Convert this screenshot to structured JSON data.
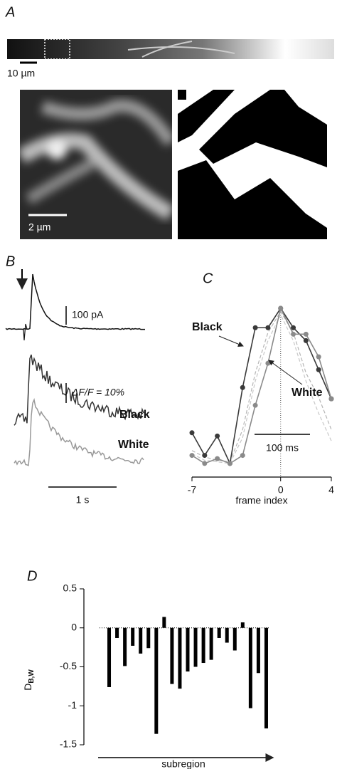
{
  "panels": {
    "a": {
      "label": "A",
      "scale_strip": "10 µm",
      "scale_zoom": "2 µm"
    },
    "b": {
      "label": "B",
      "current_scale": "100 pA",
      "dff_scale": "ΔF/F = 10%",
      "black": "Black",
      "white": "White",
      "time_scale": "1 s"
    }
  },
  "chart_data": [
    {
      "type": "line",
      "title": "C",
      "xlabel": "frame index",
      "x": [
        -7,
        -6,
        -5,
        -4,
        -3,
        -2,
        -1,
        0,
        1,
        2,
        3,
        4
      ],
      "xlim": [
        -7,
        4
      ],
      "xticks": [
        -7,
        0,
        4
      ],
      "ylim": [
        0,
        1
      ],
      "annotations": [
        "Black",
        "White"
      ],
      "scale_label": "100 ms",
      "series": [
        {
          "style": "dashed",
          "color": "#b5b5b5",
          "values": [
            0.12,
            0.08,
            0.06,
            0.05,
            0.25,
            0.6,
            0.85,
            0.98,
            0.85,
            0.6,
            0.45,
            0.25
          ]
        },
        {
          "style": "dashed",
          "color": "#c8c8c8",
          "values": [
            0.1,
            0.06,
            0.05,
            0.04,
            0.2,
            0.55,
            0.8,
            0.96,
            0.8,
            0.55,
            0.35,
            0.18
          ]
        },
        {
          "name": "Black",
          "color": "#3a3a3a",
          "values": [
            0.23,
            0.09,
            0.21,
            0.04,
            0.51,
            0.88,
            0.88,
            1,
            0.88,
            0.8,
            0.62,
            0.44
          ]
        },
        {
          "name": "White",
          "color": "#8a8a8a",
          "values": [
            0.09,
            0.04,
            0.07,
            0.04,
            0.09,
            0.4,
            0.66,
            1,
            0.84,
            0.84,
            0.7,
            0.44
          ]
        }
      ]
    },
    {
      "type": "bar",
      "title": "D",
      "ylabel": "D",
      "ylabel_subscript": "B,W",
      "xlabel": "subregion",
      "values": [
        -0.76,
        -0.13,
        -0.49,
        -0.23,
        -0.33,
        -0.26,
        -1.36,
        0.14,
        -0.72,
        -0.78,
        -0.56,
        -0.5,
        -0.45,
        -0.41,
        -0.13,
        -0.19,
        -0.29,
        0.07,
        -1.03,
        -0.58,
        -1.29
      ],
      "color": "#000000",
      "ylim": [
        -1.5,
        0.5
      ],
      "yticks": [
        0.5,
        0,
        -0.5,
        -1,
        -1.5
      ]
    }
  ]
}
